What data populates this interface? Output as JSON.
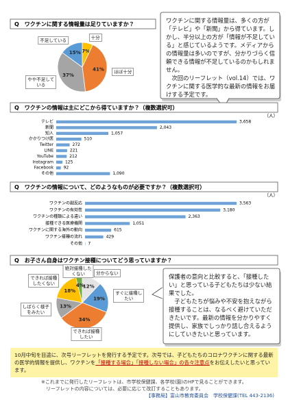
{
  "chart_data": [
    {
      "type": "pie",
      "title": "Q　ワクチンに関する情報量は足りていますか？",
      "categories": [
        "十分",
        "ほぼ十分",
        "やや不足している",
        "不足している"
      ],
      "values": [
        7,
        41,
        37,
        15
      ],
      "value_labels": [
        "7%",
        "41%",
        "37%",
        "15%"
      ],
      "colors": [
        "#ffc000",
        "#ed7d31",
        "#a5a5a5",
        "#5b9bd5"
      ]
    },
    {
      "type": "bar",
      "title": "Q　ワクチンの情報は主にどこから得ていますか？（複数選択可）",
      "unit": "（人）",
      "categories": [
        "テレビ",
        "新聞",
        "知人",
        "かかりつけ医",
        "Twitter",
        "LINE",
        "YouTube",
        "Instagram",
        "Facebook",
        "その他"
      ],
      "values": [
        3658,
        2043,
        1057,
        510,
        272,
        221,
        212,
        125,
        92,
        1090
      ],
      "value_labels": [
        "3,658",
        "2,043",
        "1,057",
        "510",
        "272",
        "221",
        "212",
        "125",
        "92",
        "1,090"
      ],
      "color": "#6fa3d8"
    },
    {
      "type": "bar",
      "title": "Q　ワクチンの情報について、どのようなものが必要ですか？（複数選択可）",
      "unit": "（人）",
      "categories": [
        "ワクチンの副反応",
        "ワクチンの有効性",
        "ワクチンの種類による違い",
        "接種できる医療機関",
        "ワクチンに関する海外の動向",
        "ワクチン接種の流れ",
        "その他"
      ],
      "values": [
        3563,
        3180,
        2363,
        1051,
        615,
        429,
        7
      ],
      "value_labels": [
        "3,563",
        "3,180",
        "2,363",
        "1,051",
        "615",
        "429",
        "7"
      ],
      "color": "#6fa3d8"
    },
    {
      "type": "pie",
      "title": "Q　お子さん自身はワクチン接種についてどう思っていますか？",
      "categories": [
        "分からない",
        "すぐに接種したい",
        "できれば接種したい",
        "しばらく様子をみたい",
        "できれば接種したくない",
        "絶対接種したくない"
      ],
      "values": [
        12,
        19,
        34,
        13,
        18,
        4
      ],
      "value_labels": [
        "12%",
        "19%",
        "34%",
        "13%",
        "18%",
        "4%"
      ],
      "colors": [
        "#e4e4e4",
        "#5b9bd5",
        "#ed7d31",
        "#a5a5a5",
        "#ffc000",
        "#70ad47"
      ]
    }
  ],
  "comments": [
    {
      "paragraphs": [
        "ワクチンに関する情報量は、多くの方が「テレビ」や「新聞」から得ています。しかし、半分以上の方が「情報が不足している」と感じているようです。メディアからの情報量は多いのですが、分かりづらく信頼できる情報が不足しているのかもしれません。",
        "次回のリーフレット（vol.14）では、ワクチンに関する医学的な最新の情報をお届けする予定です。"
      ]
    },
    {
      "paragraphs": [
        "保護者の意向と比較すると、「接種したい」と思っている子どもたちは少ない結果でした。",
        "子どもたちが悩みや不安を抱えながら接種することは、なるべく避けていただきたいです。最新の情報を分かりやすく提供し、家族でしっかり話し合えるようにしていきたいと思っています。"
      ]
    }
  ],
  "notice": {
    "before": "10月中旬を目途に、次号リーフレットを発行する予定です。次号では、子どもたちのコロナワクチンに関する最新の医学的情報を提供し、ワクチンを",
    "highlight": "「接種する場合」「接種しない場合」の各々注意点",
    "after": "をお伝えしたいと思っています。"
  },
  "footer": [
    "※これまでに発行したリーフレットは、市学校保健課、各学校(園)のHPで見ることができます。",
    "リーフレットの内容については、必要に応じて改訂することもあります。",
    "【事務局】富山市教育委員会　学校保健課(TEL 443-2136)"
  ]
}
